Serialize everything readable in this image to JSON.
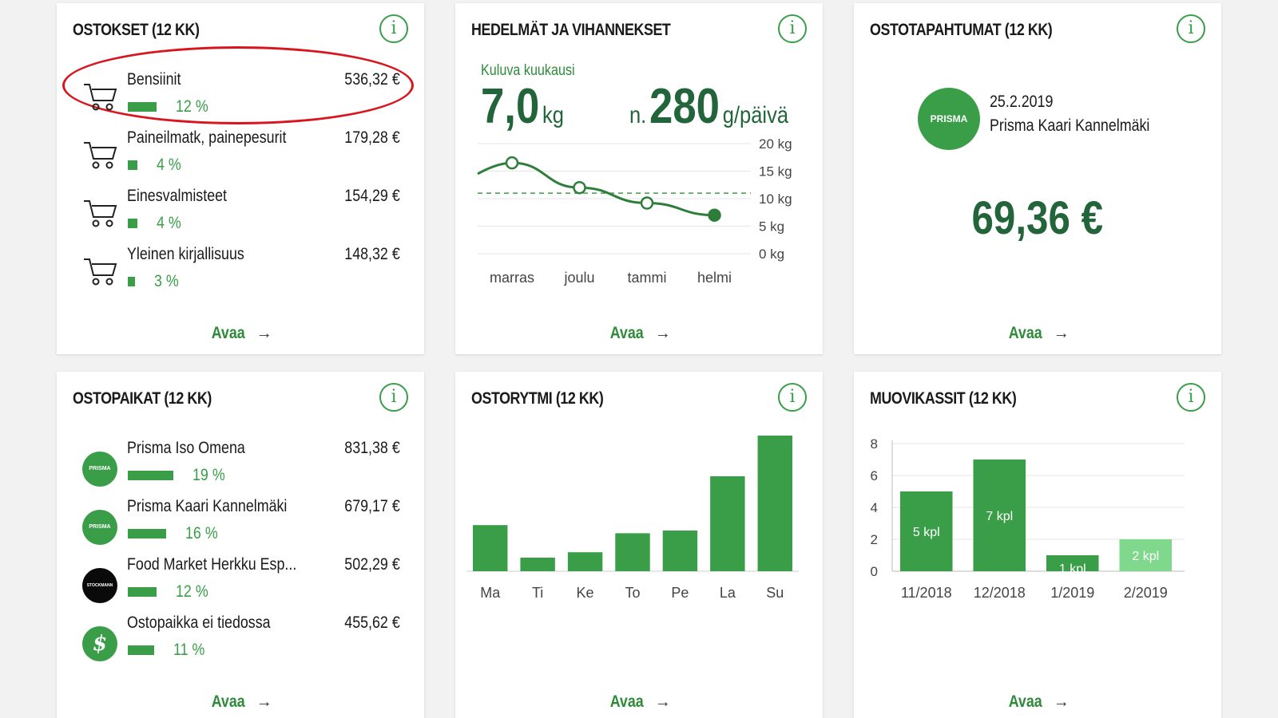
{
  "purchases": {
    "title": "OSTOKSET (12 KK)",
    "open_label": "Avaa",
    "items": [
      {
        "label": "Bensiinit",
        "value": "536,32 €",
        "percent": "12 %",
        "share": 12
      },
      {
        "label": "Paineilmatk, painepesurit",
        "value": "179,28 €",
        "percent": "4 %",
        "share": 4
      },
      {
        "label": "Einesvalmisteet",
        "value": "154,29 €",
        "percent": "4 %",
        "share": 4
      },
      {
        "label": "Yleinen kirjallisuus",
        "value": "148,32 €",
        "percent": "3 %",
        "share": 3
      }
    ]
  },
  "fruits": {
    "title": "HEDELMÄT JA VIHANNEKSET",
    "open_label": "Avaa",
    "current_label": "Kuluva kuukausi",
    "current_value": "7,0",
    "current_unit": "kg",
    "daily_prefix": "n.",
    "daily_value": "280",
    "daily_unit": "g/päivä",
    "chart_data": {
      "type": "line",
      "categories": [
        "marras",
        "joulu",
        "tammi",
        "helmi"
      ],
      "values": [
        16.5,
        12.0,
        9.2,
        7.0
      ],
      "reference_line": 11,
      "y_ticks": [
        "0 kg",
        "5 kg",
        "10 kg",
        "15 kg",
        "20 kg"
      ],
      "ylim": [
        0,
        20
      ]
    }
  },
  "transactions": {
    "title": "OSTOTAPAHTUMAT (12 KK)",
    "open_label": "Avaa",
    "date": "25.2.2019",
    "store": "Prisma Kaari Kannelmäki",
    "store_logo": "PRISMA",
    "total": "69,36 €"
  },
  "places": {
    "title": "OSTOPAIKAT (12 KK)",
    "open_label": "Avaa",
    "items": [
      {
        "label": "Prisma Iso Omena",
        "value": "831,38 €",
        "percent": "19 %",
        "share": 19,
        "logo": "PRISMA",
        "logo_color": "#3a9e48"
      },
      {
        "label": "Prisma Kaari Kannelmäki",
        "value": "679,17 €",
        "percent": "16 %",
        "share": 16,
        "logo": "PRISMA",
        "logo_color": "#3a9e48"
      },
      {
        "label": "Food Market Herkku Esp...",
        "value": "502,29 €",
        "percent": "12 %",
        "share": 12,
        "logo": "STOCKMANN",
        "logo_color": "#0a0a0a"
      },
      {
        "label": "Ostopaikka ei tiedossa",
        "value": "455,62 €",
        "percent": "11 %",
        "share": 11,
        "logo": "",
        "logo_color": "#3a9e48"
      }
    ]
  },
  "rhythm": {
    "title": "OSTORYTMI (12 KK)",
    "open_label": "Avaa",
    "chart_data": {
      "type": "bar",
      "categories": [
        "Ma",
        "Ti",
        "Ke",
        "To",
        "Pe",
        "La",
        "Su"
      ],
      "values": [
        17,
        5,
        7,
        14,
        15,
        35,
        50
      ],
      "ylim": [
        0,
        50
      ]
    }
  },
  "bags": {
    "title": "MUOVIKASSIT (12 KK)",
    "open_label": "Avaa",
    "chart_data": {
      "type": "bar",
      "categories": [
        "11/2018",
        "12/2018",
        "1/2019",
        "2/2019"
      ],
      "values": [
        5,
        7,
        1,
        2
      ],
      "labels": [
        "5 kpl",
        "7 kpl",
        "1 kpl",
        "2 kpl"
      ],
      "colors": [
        "#3a9e48",
        "#3a9e48",
        "#3a9e48",
        "#7fd88c"
      ],
      "y_ticks": [
        0,
        2,
        4,
        6,
        8
      ],
      "ylim": [
        0,
        8
      ]
    }
  }
}
